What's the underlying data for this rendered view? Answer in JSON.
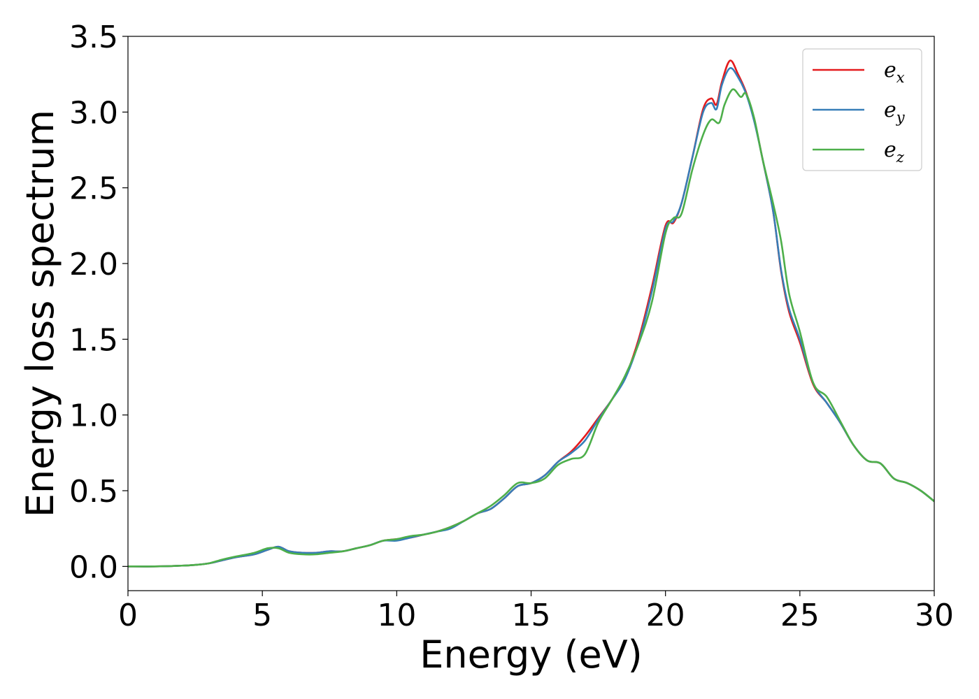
{
  "chart_data": {
    "type": "line",
    "xlabel": "Energy (eV)",
    "ylabel": "Energy loss spectrum",
    "xlim": [
      0,
      30
    ],
    "ylim": [
      -0.16,
      3.5
    ],
    "xticks": [
      0,
      5,
      10,
      15,
      20,
      25,
      30
    ],
    "xtick_labels": [
      "0",
      "5",
      "10",
      "15",
      "20",
      "25",
      "30"
    ],
    "yticks": [
      0.0,
      0.5,
      1.0,
      1.5,
      2.0,
      2.5,
      3.0,
      3.5
    ],
    "ytick_labels": [
      "0.0",
      "0.5",
      "1.0",
      "1.5",
      "2.0",
      "2.5",
      "3.0",
      "3.5"
    ],
    "grid": false,
    "legend_position": "top-right",
    "series": [
      {
        "name": "e",
        "subscript": "x",
        "color": "#e41a1c",
        "x": [
          0,
          1,
          2,
          2.5,
          3,
          3.5,
          4,
          4.7,
          5.2,
          5.6,
          6.0,
          6.5,
          7.0,
          7.5,
          8.0,
          8.5,
          9.0,
          9.5,
          10.0,
          10.5,
          11.0,
          11.5,
          12.0,
          12.5,
          13.0,
          13.5,
          14.0,
          14.5,
          15.0,
          15.5,
          16.0,
          16.5,
          17.0,
          17.5,
          18.0,
          18.5,
          19.0,
          19.5,
          20.0,
          20.3,
          20.6,
          21.0,
          21.4,
          21.7,
          21.9,
          22.1,
          22.4,
          22.7,
          23.0,
          23.3,
          23.6,
          24.0,
          24.3,
          24.6,
          25.0,
          25.5,
          26.0,
          26.5,
          27.0,
          27.5,
          28.0,
          28.5,
          29.0,
          29.5,
          30.0
        ],
        "y": [
          0.0,
          0.0,
          0.005,
          0.01,
          0.02,
          0.04,
          0.06,
          0.08,
          0.11,
          0.13,
          0.1,
          0.09,
          0.09,
          0.1,
          0.1,
          0.12,
          0.14,
          0.17,
          0.18,
          0.19,
          0.21,
          0.23,
          0.26,
          0.3,
          0.35,
          0.38,
          0.45,
          0.53,
          0.55,
          0.6,
          0.69,
          0.76,
          0.86,
          0.98,
          1.1,
          1.25,
          1.5,
          1.85,
          2.25,
          2.27,
          2.4,
          2.7,
          3.02,
          3.09,
          3.05,
          3.2,
          3.34,
          3.25,
          3.13,
          2.95,
          2.7,
          2.35,
          1.95,
          1.68,
          1.48,
          1.2,
          1.08,
          0.95,
          0.8,
          0.7,
          0.68,
          0.58,
          0.55,
          0.5,
          0.43
        ]
      },
      {
        "name": "e",
        "subscript": "y",
        "color": "#377eb8",
        "x": [
          0,
          1,
          2,
          2.5,
          3,
          3.5,
          4,
          4.7,
          5.2,
          5.6,
          6.0,
          6.5,
          7.0,
          7.5,
          8.0,
          8.5,
          9.0,
          9.5,
          10.0,
          10.5,
          11.0,
          11.5,
          12.0,
          12.5,
          13.0,
          13.5,
          14.0,
          14.5,
          15.0,
          15.5,
          16.0,
          16.5,
          17.0,
          17.5,
          18.0,
          18.5,
          19.0,
          19.5,
          20.0,
          20.3,
          20.6,
          21.0,
          21.4,
          21.7,
          21.9,
          22.1,
          22.4,
          22.7,
          23.0,
          23.3,
          23.6,
          24.0,
          24.3,
          24.6,
          25.0,
          25.5,
          26.0,
          26.5,
          27.0,
          27.5,
          28.0,
          28.5,
          29.0,
          29.5,
          30.0
        ],
        "y": [
          0.0,
          0.0,
          0.005,
          0.01,
          0.02,
          0.04,
          0.06,
          0.08,
          0.11,
          0.13,
          0.1,
          0.09,
          0.09,
          0.1,
          0.1,
          0.12,
          0.14,
          0.17,
          0.17,
          0.19,
          0.21,
          0.23,
          0.25,
          0.3,
          0.35,
          0.38,
          0.45,
          0.53,
          0.55,
          0.6,
          0.69,
          0.75,
          0.83,
          0.97,
          1.1,
          1.24,
          1.48,
          1.82,
          2.23,
          2.28,
          2.4,
          2.7,
          3.0,
          3.06,
          3.02,
          3.18,
          3.29,
          3.23,
          3.12,
          2.94,
          2.7,
          2.35,
          1.96,
          1.7,
          1.5,
          1.21,
          1.08,
          0.95,
          0.8,
          0.7,
          0.68,
          0.58,
          0.55,
          0.5,
          0.43
        ]
      },
      {
        "name": "e",
        "subscript": "z",
        "color": "#4daf4a",
        "x": [
          0,
          1,
          2,
          2.5,
          3,
          3.5,
          4,
          4.7,
          5.2,
          5.6,
          6.0,
          6.5,
          7.0,
          7.5,
          8.0,
          8.5,
          9.0,
          9.5,
          10.0,
          10.5,
          11.0,
          11.5,
          12.0,
          12.5,
          13.0,
          13.5,
          14.0,
          14.5,
          15.0,
          15.5,
          16.0,
          16.5,
          17.0,
          17.5,
          18.0,
          18.5,
          19.0,
          19.5,
          20.0,
          20.3,
          20.6,
          21.0,
          21.4,
          21.7,
          22.0,
          22.2,
          22.5,
          22.8,
          23.0,
          23.3,
          23.6,
          24.0,
          24.3,
          24.6,
          25.0,
          25.5,
          26.0,
          26.5,
          27.0,
          27.5,
          28.0,
          28.5,
          29.0,
          29.5,
          30.0
        ],
        "y": [
          0.0,
          0.0,
          0.005,
          0.01,
          0.02,
          0.045,
          0.065,
          0.09,
          0.12,
          0.12,
          0.09,
          0.08,
          0.08,
          0.09,
          0.1,
          0.12,
          0.14,
          0.17,
          0.18,
          0.2,
          0.21,
          0.23,
          0.26,
          0.3,
          0.35,
          0.4,
          0.47,
          0.55,
          0.55,
          0.58,
          0.67,
          0.71,
          0.74,
          0.95,
          1.1,
          1.26,
          1.47,
          1.75,
          2.2,
          2.3,
          2.33,
          2.62,
          2.85,
          2.95,
          2.93,
          3.05,
          3.15,
          3.1,
          3.12,
          2.96,
          2.7,
          2.4,
          2.15,
          1.8,
          1.55,
          1.21,
          1.12,
          0.96,
          0.8,
          0.7,
          0.68,
          0.58,
          0.55,
          0.5,
          0.43
        ]
      }
    ]
  }
}
